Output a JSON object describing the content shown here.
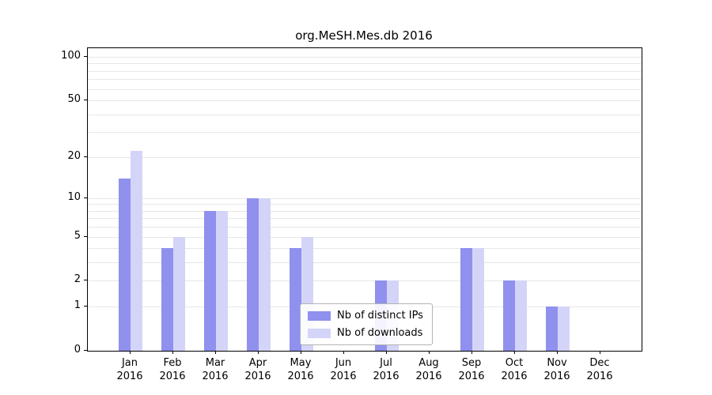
{
  "chart_data": {
    "type": "bar",
    "title": "org.MeSH.Mes.db 2016",
    "categories": [
      "Jan 2016",
      "Feb 2016",
      "Mar 2016",
      "Apr 2016",
      "May 2016",
      "Jun 2016",
      "Jul 2016",
      "Aug 2016",
      "Sep 2016",
      "Oct 2016",
      "Nov 2016",
      "Dec 2016"
    ],
    "series": [
      {
        "name": "Nb of distinct IPs",
        "color": "#9090ee",
        "values": [
          14,
          4,
          8,
          10,
          4,
          0,
          2,
          0,
          4,
          2,
          1,
          0
        ]
      },
      {
        "name": "Nb of downloads",
        "color": "#d4d4f8",
        "values": [
          22,
          5,
          8,
          10,
          5,
          0,
          2,
          0,
          4,
          2,
          1,
          0
        ]
      }
    ],
    "xlabel": "",
    "ylabel": "",
    "yscale": "log1p",
    "ylim": [
      0,
      115
    ],
    "yticks": [
      0,
      1,
      2,
      5,
      10,
      20,
      50,
      100
    ],
    "minor_gridlines": [
      1,
      2,
      3,
      4,
      5,
      6,
      7,
      8,
      9,
      10,
      20,
      30,
      40,
      50,
      60,
      70,
      80,
      90,
      100
    ],
    "grid": "horizontal",
    "legend_position": "lower center inside",
    "colors": {
      "axis": "#000000",
      "gridline": "#e7e7e7",
      "background": "#ffffff"
    }
  }
}
